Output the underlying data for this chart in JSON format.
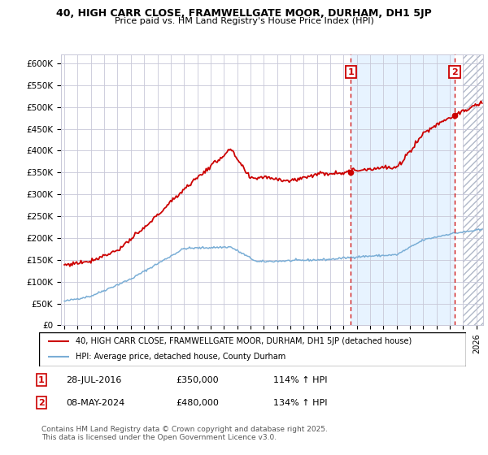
{
  "title_line1": "40, HIGH CARR CLOSE, FRAMWELLGATE MOOR, DURHAM, DH1 5JP",
  "title_line2": "Price paid vs. HM Land Registry's House Price Index (HPI)",
  "ylim": [
    0,
    620000
  ],
  "yticks": [
    0,
    50000,
    100000,
    150000,
    200000,
    250000,
    300000,
    350000,
    400000,
    450000,
    500000,
    550000,
    600000
  ],
  "ytick_labels": [
    "£0",
    "£50K",
    "£100K",
    "£150K",
    "£200K",
    "£250K",
    "£300K",
    "£350K",
    "£400K",
    "£450K",
    "£500K",
    "£550K",
    "£600K"
  ],
  "xlim_start": 1994.75,
  "xlim_end": 2026.5,
  "xticks": [
    1995,
    1996,
    1997,
    1998,
    1999,
    2000,
    2001,
    2002,
    2003,
    2004,
    2005,
    2006,
    2007,
    2008,
    2009,
    2010,
    2011,
    2012,
    2013,
    2014,
    2015,
    2016,
    2017,
    2018,
    2019,
    2020,
    2021,
    2022,
    2023,
    2024,
    2025,
    2026
  ],
  "hpi_color": "#7aaed6",
  "price_color": "#cc0000",
  "vline_color": "#cc0000",
  "shade_color": "#ddeeff",
  "marker1_date": 2016.55,
  "marker1_price": 350000,
  "marker2_date": 2024.35,
  "marker2_price": 480000,
  "legend_label_red": "40, HIGH CARR CLOSE, FRAMWELLGATE MOOR, DURHAM, DH1 5JP (detached house)",
  "legend_label_blue": "HPI: Average price, detached house, County Durham",
  "table_row1": [
    "1",
    "28-JUL-2016",
    "£350,000",
    "114% ↑ HPI"
  ],
  "table_row2": [
    "2",
    "08-MAY-2024",
    "£480,000",
    "134% ↑ HPI"
  ],
  "footer": "Contains HM Land Registry data © Crown copyright and database right 2025.\nThis data is licensed under the Open Government Licence v3.0.",
  "background_color": "#ffffff",
  "grid_color": "#c8c8d8"
}
